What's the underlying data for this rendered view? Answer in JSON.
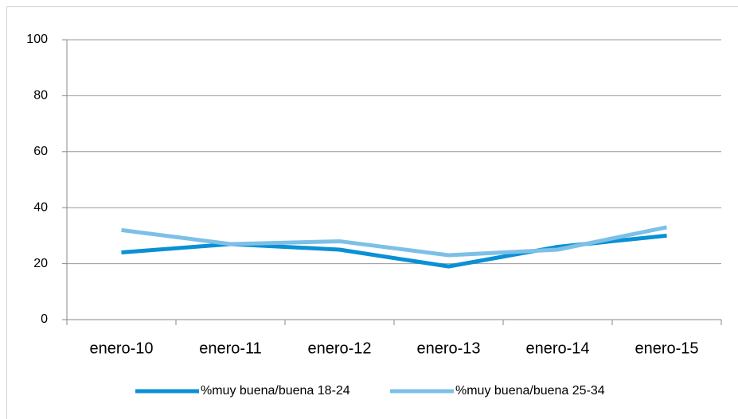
{
  "chart_data": {
    "type": "line",
    "categories": [
      "enero-10",
      "enero-11",
      "enero-12",
      "enero-13",
      "enero-14",
      "enero-15"
    ],
    "series": [
      {
        "name": "%muy buena/buena 18-24",
        "color": "#0a90d4",
        "values": [
          24,
          27,
          25,
          19,
          26,
          30
        ]
      },
      {
        "name": "%muy buena/buena 25-34",
        "color": "#7cc0e8",
        "values": [
          32,
          27,
          28,
          23,
          25,
          33
        ]
      }
    ],
    "ylim": [
      0,
      100
    ],
    "yticks": [
      0,
      20,
      40,
      60,
      80,
      100
    ],
    "grid": true,
    "legend": "bottom"
  }
}
